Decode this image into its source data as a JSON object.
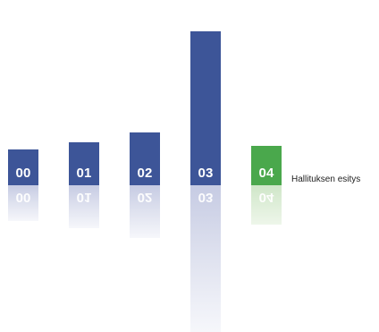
{
  "steps": [
    {
      "label": "00"
    },
    {
      "label": "01"
    },
    {
      "label": "02"
    },
    {
      "label": "03"
    },
    {
      "label": "04",
      "title": "Hallituksen esitys"
    }
  ],
  "colors": {
    "bar": "#3d5598",
    "active": "#4aa84c"
  },
  "active_step": "04"
}
